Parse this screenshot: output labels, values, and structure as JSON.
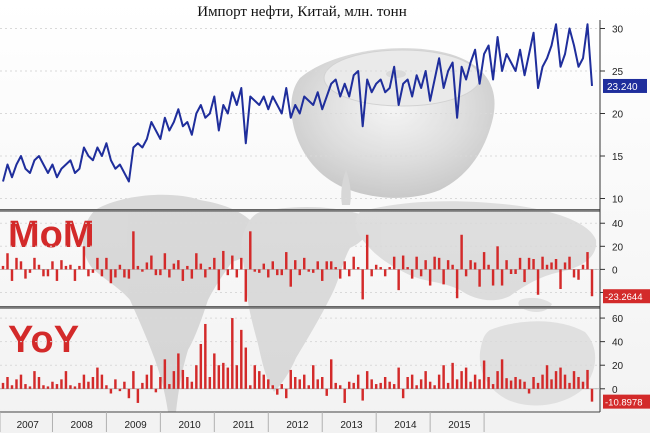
{
  "chart_data": {
    "title": "Импорт нефти, Китай, млн. тонн",
    "type": "composite",
    "years": [
      "2007",
      "2008",
      "2009",
      "2010",
      "2011",
      "2012",
      "2013",
      "2014",
      "2015"
    ],
    "top": {
      "type": "line",
      "ylim": [
        9,
        31
      ],
      "yticks": [
        10,
        15,
        20,
        25,
        30
      ],
      "last_value_label": "23.240",
      "color": "#1f2e9c",
      "values": [
        12.0,
        14.0,
        12.5,
        14.0,
        15.0,
        13.5,
        13.0,
        14.5,
        15.0,
        14.0,
        13.0,
        14.0,
        12.5,
        13.5,
        14.0,
        14.5,
        13.0,
        13.5,
        16.0,
        15.0,
        14.5,
        16.0,
        15.0,
        16.5,
        14.5,
        13.5,
        14.0,
        13.0,
        12.0,
        16.0,
        16.5,
        16.0,
        17.0,
        19.0,
        18.0,
        17.0,
        19.5,
        18.0,
        19.0,
        20.5,
        18.5,
        19.0,
        17.5,
        20.0,
        21.0,
        19.5,
        20.0,
        22.0,
        18.0,
        21.0,
        20.0,
        22.5,
        21.0,
        23.0,
        16.5,
        22.0,
        21.5,
        21.0,
        22.0,
        20.5,
        22.0,
        21.0,
        20.0,
        23.0,
        19.5,
        21.0,
        20.0,
        22.0,
        21.5,
        21.0,
        22.5,
        20.5,
        22.0,
        23.5,
        24.0,
        22.0,
        23.5,
        22.0,
        24.5,
        25.0,
        18.5,
        24.0,
        22.5,
        23.5,
        24.0,
        22.5,
        23.0,
        25.5,
        21.0,
        23.5,
        24.0,
        22.0,
        24.5,
        23.0,
        25.0,
        21.5,
        24.0,
        26.5,
        23.0,
        25.0,
        26.0,
        19.5,
        25.5,
        24.0,
        26.0,
        27.5,
        23.5,
        27.0,
        28.0,
        24.0,
        29.0,
        25.0,
        27.0,
        26.0,
        25.0,
        27.5,
        24.5,
        27.0,
        29.5,
        23.0,
        25.5,
        26.5,
        28.0,
        30.5,
        25.5,
        27.0,
        30.0,
        28.0,
        25.5,
        26.5,
        30.5,
        23.24
      ]
    },
    "mom": {
      "type": "bar",
      "label": "MoM",
      "ylim": [
        -30,
        48
      ],
      "yticks": [
        40,
        20,
        0,
        -20
      ],
      "last_value_label": "-23.2644",
      "color": "#d32a2a",
      "values": [
        3,
        14,
        -10,
        10,
        7,
        -8,
        -3,
        10,
        4,
        -6,
        -6,
        7,
        -10,
        8,
        3,
        4,
        -10,
        3,
        20,
        -6,
        -3,
        10,
        -6,
        10,
        -12,
        -7,
        4,
        -7,
        -8,
        33,
        3,
        -2,
        6,
        12,
        -5,
        -5,
        14,
        -7,
        5,
        8,
        -10,
        3,
        -8,
        14,
        5,
        -7,
        2,
        10,
        -18,
        16,
        -5,
        12,
        -7,
        10,
        -28,
        33,
        -2,
        -3,
        5,
        -7,
        7,
        -5,
        -5,
        15,
        -15,
        8,
        -5,
        10,
        -2,
        -3,
        7,
        -10,
        7,
        7,
        2,
        -8,
        7,
        -6,
        11,
        2,
        -26,
        30,
        -6,
        4,
        2,
        -6,
        2,
        11,
        -18,
        12,
        2,
        -8,
        11,
        -6,
        8,
        -14,
        11,
        10,
        -13,
        8,
        4,
        -25,
        30,
        -6,
        8,
        6,
        -15,
        15,
        4,
        -14,
        20,
        -14,
        8,
        -4,
        -4,
        10,
        -11,
        10,
        9,
        -22,
        11,
        4,
        6,
        9,
        -17,
        6,
        11,
        -7,
        -9,
        4,
        15,
        -23.26
      ]
    },
    "yoy": {
      "type": "bar",
      "label": "YoY",
      "ylim": [
        -18,
        66
      ],
      "yticks": [
        60,
        40,
        20,
        0
      ],
      "last_value_label": "-10.8978",
      "color": "#d32a2a",
      "values": [
        5,
        10,
        3,
        8,
        12,
        4,
        2,
        15,
        10,
        3,
        2,
        6,
        4,
        8,
        15,
        3,
        2,
        5,
        12,
        6,
        10,
        18,
        12,
        3,
        -4,
        8,
        -2,
        6,
        -8,
        15,
        -12,
        5,
        12,
        20,
        -3,
        10,
        25,
        4,
        15,
        30,
        16,
        10,
        6,
        20,
        38,
        55,
        10,
        30,
        20,
        22,
        18,
        60,
        20,
        50,
        35,
        3,
        20,
        15,
        12,
        8,
        3,
        -5,
        4,
        -8,
        16,
        10,
        8,
        12,
        3,
        20,
        8,
        10,
        -6,
        25,
        5,
        3,
        -12,
        6,
        5,
        12,
        -10,
        15,
        8,
        4,
        5,
        10,
        6,
        4,
        18,
        -8,
        10,
        12,
        3,
        8,
        15,
        6,
        3,
        12,
        20,
        5,
        22,
        8,
        15,
        18,
        6,
        12,
        8,
        24,
        10,
        4,
        15,
        25,
        9,
        7,
        10,
        8,
        6,
        -4,
        10,
        5,
        12,
        20,
        8,
        15,
        18,
        12,
        5,
        15,
        10,
        6,
        16,
        -10.9
      ]
    }
  }
}
